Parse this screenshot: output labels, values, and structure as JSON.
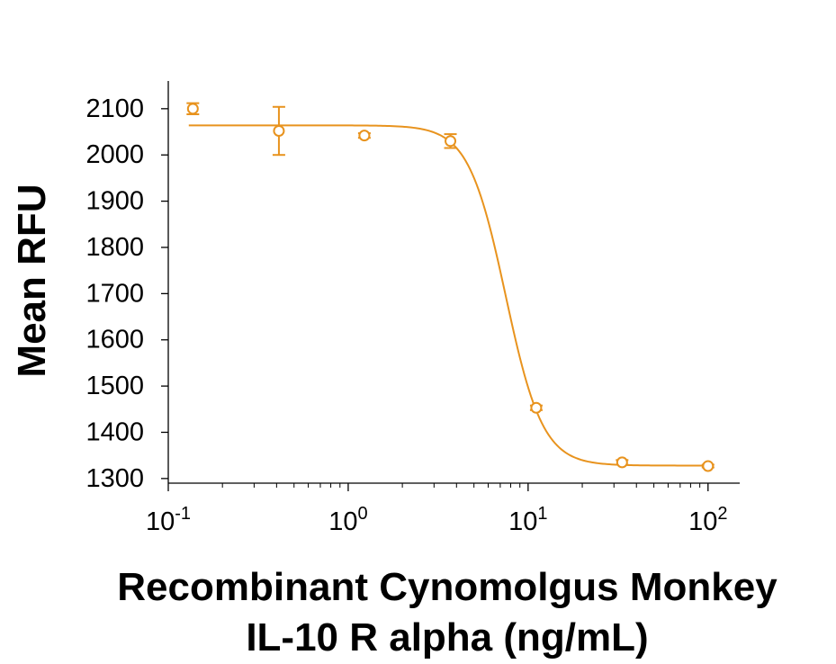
{
  "chart_data": {
    "type": "scatter",
    "xscale": "log",
    "xlim": [
      0.1,
      150
    ],
    "ylim": [
      1290,
      2160
    ],
    "ylabel": "Mean RFU",
    "xlabel_lines": [
      "Recombinant Cynomolgus Monkey",
      "IL-10 R alpha (ng/mL)"
    ],
    "xticks": [
      {
        "value": 0.1,
        "base": "10",
        "exp": "-1"
      },
      {
        "value": 1,
        "base": "10",
        "exp": "0"
      },
      {
        "value": 10,
        "base": "10",
        "exp": "1"
      },
      {
        "value": 100,
        "base": "10",
        "exp": "2"
      }
    ],
    "yticks": [
      1300,
      1400,
      1500,
      1600,
      1700,
      1800,
      1900,
      2000,
      2100
    ],
    "color": "#E8931E",
    "series": [
      {
        "x": [
          0.137,
          0.412,
          1.23,
          3.7,
          11.1,
          33.3,
          100
        ],
        "y": [
          2100,
          2052,
          2042,
          2030,
          1453,
          1335,
          1327
        ],
        "err": [
          12,
          52,
          5,
          15,
          5,
          5,
          3
        ]
      }
    ],
    "fit": {
      "model": "4PL",
      "top": 2064,
      "bottom": 1328,
      "ec50": 7.5,
      "hill": 4.2
    }
  }
}
